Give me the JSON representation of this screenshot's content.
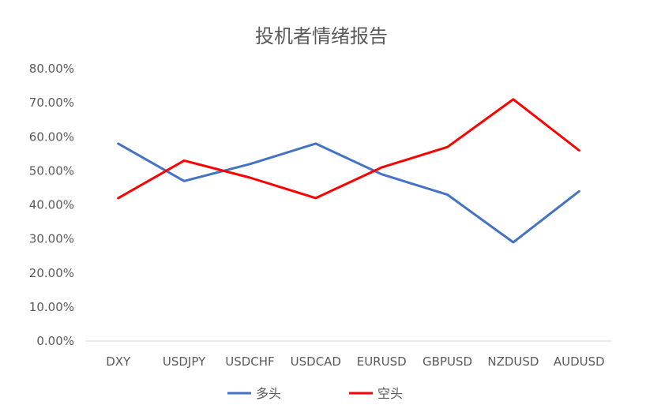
{
  "chart_data": {
    "type": "line",
    "title": "投机者情绪报告",
    "xlabel": "",
    "ylabel": "",
    "categories": [
      "DXY",
      "USDJPY",
      "USDCHF",
      "USDCAD",
      "EURUSD",
      "GBPUSD",
      "NZDUSD",
      "AUDUSD"
    ],
    "ylim": [
      0,
      0.8
    ],
    "yticks": [
      0,
      0.1,
      0.2,
      0.3,
      0.4,
      0.5,
      0.6,
      0.7,
      0.8
    ],
    "ytick_labels": [
      "0.00%",
      "10.00%",
      "20.00%",
      "30.00%",
      "40.00%",
      "50.00%",
      "60.00%",
      "70.00%",
      "80.00%"
    ],
    "grid": false,
    "legend_position": "bottom",
    "series": [
      {
        "name": "多头",
        "color": "#4472C4",
        "values": [
          0.58,
          0.47,
          0.52,
          0.58,
          0.49,
          0.43,
          0.29,
          0.44
        ]
      },
      {
        "name": "空头",
        "color": "#FF0000",
        "values": [
          0.42,
          0.53,
          0.48,
          0.42,
          0.51,
          0.57,
          0.71,
          0.56
        ]
      }
    ]
  }
}
